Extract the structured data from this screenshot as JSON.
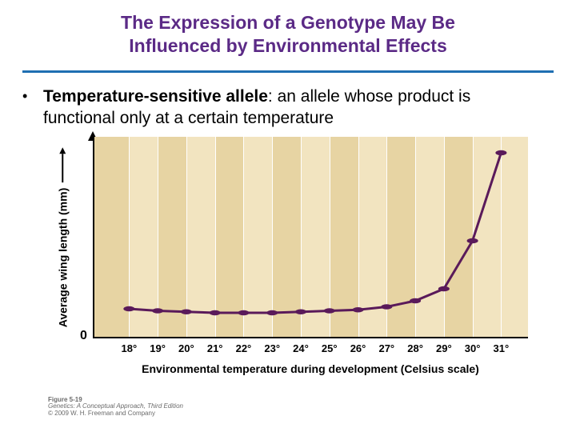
{
  "title": {
    "line1": "The Expression of a Genotype May Be",
    "line2": "Influenced by Environmental Effects",
    "color": "#5b2a86",
    "fontsize": 23
  },
  "rule_color": "#1f6fb2",
  "bullet": {
    "term": "Temperature-sensitive allele",
    "rest": ": an allele whose product is functional only at a certain temperature",
    "fontsize": 21,
    "color": "#000000"
  },
  "chart": {
    "type": "line",
    "background_band_a": "#f2e4c0",
    "background_band_b": "#e7d4a3",
    "grid_color": "#ffffff",
    "line_color": "#5a1a5a",
    "line_width": 3,
    "marker_color": "#5a1a5a",
    "marker_radius": 4,
    "xlabel": "Environmental temperature during development (Celsius scale)",
    "ylabel": "Average wing length (mm)",
    "label_fontsize": 14,
    "tick_fontsize": 13,
    "x_ticks": [
      "18°",
      "19°",
      "20°",
      "21°",
      "22°",
      "23°",
      "24°",
      "25°",
      "26°",
      "27°",
      "28°",
      "29°",
      "30°",
      "31°"
    ],
    "x_positions_pct": [
      8,
      14.6,
      21.2,
      27.8,
      34.4,
      41,
      47.6,
      54.2,
      60.8,
      67.4,
      74,
      80.6,
      87.2,
      93.8
    ],
    "y_values_pct": [
      14,
      13,
      12.5,
      12,
      12,
      12,
      12.5,
      13,
      13.5,
      15,
      18,
      24,
      48,
      92
    ],
    "ylim": [
      0,
      100
    ],
    "y_tick0": "0"
  },
  "caption": {
    "line1": "Figure 5-19",
    "line2": "Genetics: A Conceptual Approach, Third Edition",
    "line3": "© 2009 W. H. Freeman and Company",
    "fontsize": 8,
    "color": "#6b6b6b"
  }
}
